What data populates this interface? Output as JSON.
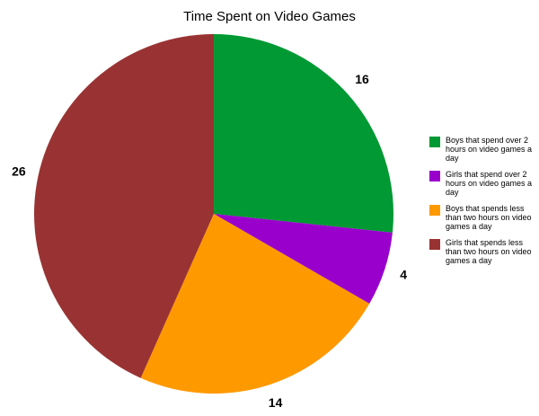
{
  "chart_data": {
    "type": "pie",
    "title": "Time Spent on Video Games",
    "categories": [
      "Boys that spend over 2 hours on video games a day",
      "Girls that spend over 2 hours on video games a day",
      "Boys that spends less than two hours on video games a day",
      "Girls that spends less than two hours on video games a day"
    ],
    "values": [
      16,
      4,
      14,
      26
    ],
    "colors": [
      "#009933",
      "#9900cc",
      "#ff9900",
      "#993333"
    ],
    "legend_position": "right",
    "start_angle": "top, clockwise"
  }
}
